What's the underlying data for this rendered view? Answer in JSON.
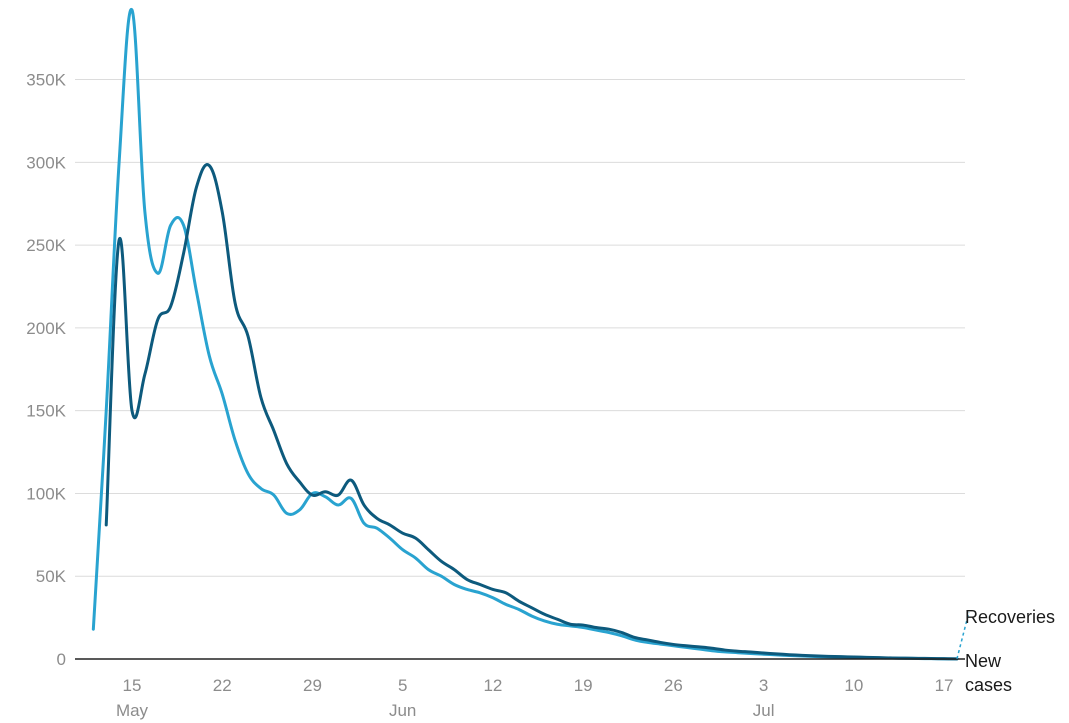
{
  "chart_data": {
    "type": "line",
    "title": "",
    "xlabel": "",
    "ylabel": "",
    "x_axis": {
      "type": "date",
      "range": [
        "2020-05-12",
        "2020-07-18"
      ],
      "ticks": [
        {
          "date": "2020-05-15",
          "label": "15"
        },
        {
          "date": "2020-05-22",
          "label": "22"
        },
        {
          "date": "2020-05-29",
          "label": "29"
        },
        {
          "date": "2020-06-05",
          "label": "5"
        },
        {
          "date": "2020-06-12",
          "label": "12"
        },
        {
          "date": "2020-06-19",
          "label": "19"
        },
        {
          "date": "2020-06-26",
          "label": "26"
        },
        {
          "date": "2020-07-03",
          "label": "3"
        },
        {
          "date": "2020-07-10",
          "label": "10"
        },
        {
          "date": "2020-07-17",
          "label": "17"
        }
      ],
      "month_labels": [
        {
          "date": "2020-05-15",
          "label": "May"
        },
        {
          "date": "2020-06-05",
          "label": "Jun"
        },
        {
          "date": "2020-07-03",
          "label": "Jul"
        }
      ]
    },
    "y_axis": {
      "range": [
        0,
        380000
      ],
      "ticks": [
        {
          "value": 0,
          "label": "0"
        },
        {
          "value": 50000,
          "label": "50K"
        },
        {
          "value": 100000,
          "label": "100K"
        },
        {
          "value": 150000,
          "label": "150K"
        },
        {
          "value": 200000,
          "label": "200K"
        },
        {
          "value": 250000,
          "label": "250K"
        },
        {
          "value": 300000,
          "label": "300K"
        },
        {
          "value": 350000,
          "label": "350K"
        }
      ]
    },
    "grid": true,
    "legend": "direct labels at right end of lines",
    "series": [
      {
        "name": "Recoveries",
        "color": "#29a3d0",
        "points": [
          [
            "2020-05-12",
            18000
          ],
          [
            "2020-05-13",
            150000
          ],
          [
            "2020-05-14",
            300000
          ],
          [
            "2020-05-15",
            392000
          ],
          [
            "2020-05-16",
            270000
          ],
          [
            "2020-05-17",
            233000
          ],
          [
            "2020-05-18",
            262000
          ],
          [
            "2020-05-19",
            262000
          ],
          [
            "2020-05-20",
            222000
          ],
          [
            "2020-05-21",
            183000
          ],
          [
            "2020-05-22",
            160000
          ],
          [
            "2020-05-23",
            132000
          ],
          [
            "2020-05-24",
            112000
          ],
          [
            "2020-05-25",
            103000
          ],
          [
            "2020-05-26",
            99000
          ],
          [
            "2020-05-27",
            88000
          ],
          [
            "2020-05-28",
            90000
          ],
          [
            "2020-05-29",
            100000
          ],
          [
            "2020-05-30",
            98000
          ],
          [
            "2020-05-31",
            93000
          ],
          [
            "2020-06-01",
            97000
          ],
          [
            "2020-06-02",
            82000
          ],
          [
            "2020-06-03",
            79000
          ],
          [
            "2020-06-04",
            73000
          ],
          [
            "2020-06-05",
            66000
          ],
          [
            "2020-06-06",
            61000
          ],
          [
            "2020-06-07",
            54000
          ],
          [
            "2020-06-08",
            50000
          ],
          [
            "2020-06-09",
            45000
          ],
          [
            "2020-06-10",
            42000
          ],
          [
            "2020-06-11",
            40000
          ],
          [
            "2020-06-12",
            37000
          ],
          [
            "2020-06-13",
            33000
          ],
          [
            "2020-06-14",
            30000
          ],
          [
            "2020-06-15",
            26000
          ],
          [
            "2020-06-16",
            23000
          ],
          [
            "2020-06-17",
            21000
          ],
          [
            "2020-06-18",
            20000
          ],
          [
            "2020-06-19",
            19000
          ],
          [
            "2020-06-20",
            17500
          ],
          [
            "2020-06-21",
            16000
          ],
          [
            "2020-06-22",
            14000
          ],
          [
            "2020-06-23",
            11500
          ],
          [
            "2020-06-24",
            10000
          ],
          [
            "2020-06-25",
            9000
          ],
          [
            "2020-06-26",
            8000
          ],
          [
            "2020-06-27",
            7000
          ],
          [
            "2020-06-28",
            6000
          ],
          [
            "2020-06-29",
            5000
          ],
          [
            "2020-06-30",
            4300
          ],
          [
            "2020-07-01",
            3800
          ],
          [
            "2020-07-02",
            3300
          ],
          [
            "2020-07-03",
            2900
          ],
          [
            "2020-07-04",
            2500
          ],
          [
            "2020-07-05",
            2100
          ],
          [
            "2020-07-06",
            1800
          ],
          [
            "2020-07-07",
            1500
          ],
          [
            "2020-07-08",
            1300
          ],
          [
            "2020-07-09",
            1100
          ],
          [
            "2020-07-10",
            900
          ],
          [
            "2020-07-11",
            800
          ],
          [
            "2020-07-12",
            600
          ],
          [
            "2020-07-13",
            500
          ],
          [
            "2020-07-14",
            400
          ],
          [
            "2020-07-15",
            300
          ],
          [
            "2020-07-16",
            200
          ],
          [
            "2020-07-17",
            100
          ],
          [
            "2020-07-18",
            100
          ]
        ]
      },
      {
        "name": "New cases",
        "color": "#0d5a7d",
        "points": [
          [
            "2020-05-13",
            81000
          ],
          [
            "2020-05-14",
            253000
          ],
          [
            "2020-05-15",
            150000
          ],
          [
            "2020-05-16",
            172000
          ],
          [
            "2020-05-17",
            205000
          ],
          [
            "2020-05-18",
            213000
          ],
          [
            "2020-05-19",
            245000
          ],
          [
            "2020-05-20",
            285000
          ],
          [
            "2020-05-21",
            298000
          ],
          [
            "2020-05-22",
            270000
          ],
          [
            "2020-05-23",
            215000
          ],
          [
            "2020-05-24",
            195000
          ],
          [
            "2020-05-25",
            158000
          ],
          [
            "2020-05-26",
            138000
          ],
          [
            "2020-05-27",
            118000
          ],
          [
            "2020-05-28",
            107000
          ],
          [
            "2020-05-29",
            99000
          ],
          [
            "2020-05-30",
            101000
          ],
          [
            "2020-05-31",
            99000
          ],
          [
            "2020-06-01",
            108000
          ],
          [
            "2020-06-02",
            93000
          ],
          [
            "2020-06-03",
            85000
          ],
          [
            "2020-06-04",
            81000
          ],
          [
            "2020-06-05",
            76000
          ],
          [
            "2020-06-06",
            73000
          ],
          [
            "2020-06-07",
            66000
          ],
          [
            "2020-06-08",
            59000
          ],
          [
            "2020-06-09",
            54000
          ],
          [
            "2020-06-10",
            48000
          ],
          [
            "2020-06-11",
            45000
          ],
          [
            "2020-06-12",
            42000
          ],
          [
            "2020-06-13",
            40000
          ],
          [
            "2020-06-14",
            35000
          ],
          [
            "2020-06-15",
            31000
          ],
          [
            "2020-06-16",
            27000
          ],
          [
            "2020-06-17",
            24000
          ],
          [
            "2020-06-18",
            21000
          ],
          [
            "2020-06-19",
            20500
          ],
          [
            "2020-06-20",
            19000
          ],
          [
            "2020-06-21",
            18000
          ],
          [
            "2020-06-22",
            16000
          ],
          [
            "2020-06-23",
            13000
          ],
          [
            "2020-06-24",
            11500
          ],
          [
            "2020-06-25",
            10000
          ],
          [
            "2020-06-26",
            8800
          ],
          [
            "2020-06-27",
            8000
          ],
          [
            "2020-06-28",
            7300
          ],
          [
            "2020-06-29",
            6500
          ],
          [
            "2020-06-30",
            5400
          ],
          [
            "2020-07-01",
            4700
          ],
          [
            "2020-07-02",
            4200
          ],
          [
            "2020-07-03",
            3600
          ],
          [
            "2020-07-04",
            3100
          ],
          [
            "2020-07-05",
            2600
          ],
          [
            "2020-07-06",
            2200
          ],
          [
            "2020-07-07",
            1900
          ],
          [
            "2020-07-08",
            1600
          ],
          [
            "2020-07-09",
            1400
          ],
          [
            "2020-07-10",
            1200
          ],
          [
            "2020-07-11",
            1000
          ],
          [
            "2020-07-12",
            800
          ],
          [
            "2020-07-13",
            600
          ],
          [
            "2020-07-14",
            500
          ],
          [
            "2020-07-15",
            400
          ],
          [
            "2020-07-16",
            300
          ],
          [
            "2020-07-17",
            200
          ],
          [
            "2020-07-18",
            100
          ]
        ]
      }
    ]
  }
}
